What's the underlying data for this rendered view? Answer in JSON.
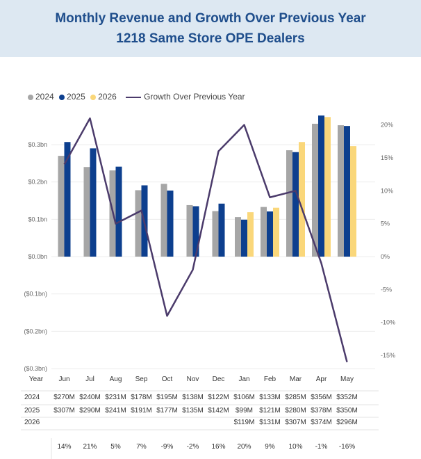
{
  "title_line1": "Monthly Revenue and Growth Over Previous Year",
  "title_line2": "1218 Same Store OPE Dealers",
  "colors": {
    "y2024": "#a6a6a6",
    "y2025": "#0d3f8e",
    "y2026": "#fad77a",
    "growth": "#4b3b6b",
    "title": "#1f4e8c",
    "band": "#dde8f2"
  },
  "legend": [
    "2024",
    "2025",
    "2026",
    "Growth Over Previous Year"
  ],
  "chart_data": {
    "type": "bar",
    "categories": [
      "Jun",
      "Jul",
      "Aug",
      "Sep",
      "Oct",
      "Nov",
      "Dec",
      "Jan",
      "Feb",
      "Mar",
      "Apr",
      "May"
    ],
    "series": [
      {
        "name": "2024",
        "values": [
          270,
          240,
          231,
          178,
          195,
          138,
          122,
          106,
          133,
          285,
          356,
          352
        ]
      },
      {
        "name": "2025",
        "values": [
          307,
          290,
          241,
          191,
          177,
          135,
          142,
          99,
          121,
          280,
          378,
          350
        ]
      },
      {
        "name": "2026",
        "values": [
          null,
          null,
          null,
          null,
          null,
          null,
          null,
          119,
          131,
          307,
          374,
          296
        ]
      }
    ],
    "line_series": {
      "name": "Growth Over Previous Year",
      "values": [
        14,
        21,
        5,
        7,
        -9,
        -2,
        16,
        20,
        9,
        10,
        -1,
        -16
      ]
    },
    "y_left": {
      "ticks": [
        "$0.3bn",
        "$0.2bn",
        "$0.1bn",
        "$0.0bn",
        "($0.1bn)",
        "($0.2bn)",
        "($0.3bn)"
      ],
      "range_musd": [
        -300,
        300
      ]
    },
    "y_right": {
      "ticks": [
        "20%",
        "15%",
        "10%",
        "5%",
        "0%",
        "-5%",
        "-10%",
        "-15%"
      ],
      "range_pct": [
        -17,
        17
      ]
    },
    "legend_position": "top-left",
    "grid": true
  },
  "table": {
    "header_label": "Year",
    "row_labels": [
      "2024",
      "2025",
      "2026"
    ],
    "rows": [
      [
        "$270M",
        "$240M",
        "$231M",
        "$178M",
        "$195M",
        "$138M",
        "$122M",
        "$106M",
        "$133M",
        "$285M",
        "$356M",
        "$352M"
      ],
      [
        "$307M",
        "$290M",
        "$241M",
        "$191M",
        "$177M",
        "$135M",
        "$142M",
        "$99M",
        "$121M",
        "$280M",
        "$378M",
        "$350M"
      ],
      [
        "",
        "",
        "",
        "",
        "",
        "",
        "",
        "$119M",
        "$131M",
        "$307M",
        "$374M",
        "$296M"
      ]
    ],
    "growth_row": [
      "14%",
      "21%",
      "5%",
      "7%",
      "-9%",
      "-2%",
      "16%",
      "20%",
      "9%",
      "10%",
      "-1%",
      "-16%"
    ]
  }
}
